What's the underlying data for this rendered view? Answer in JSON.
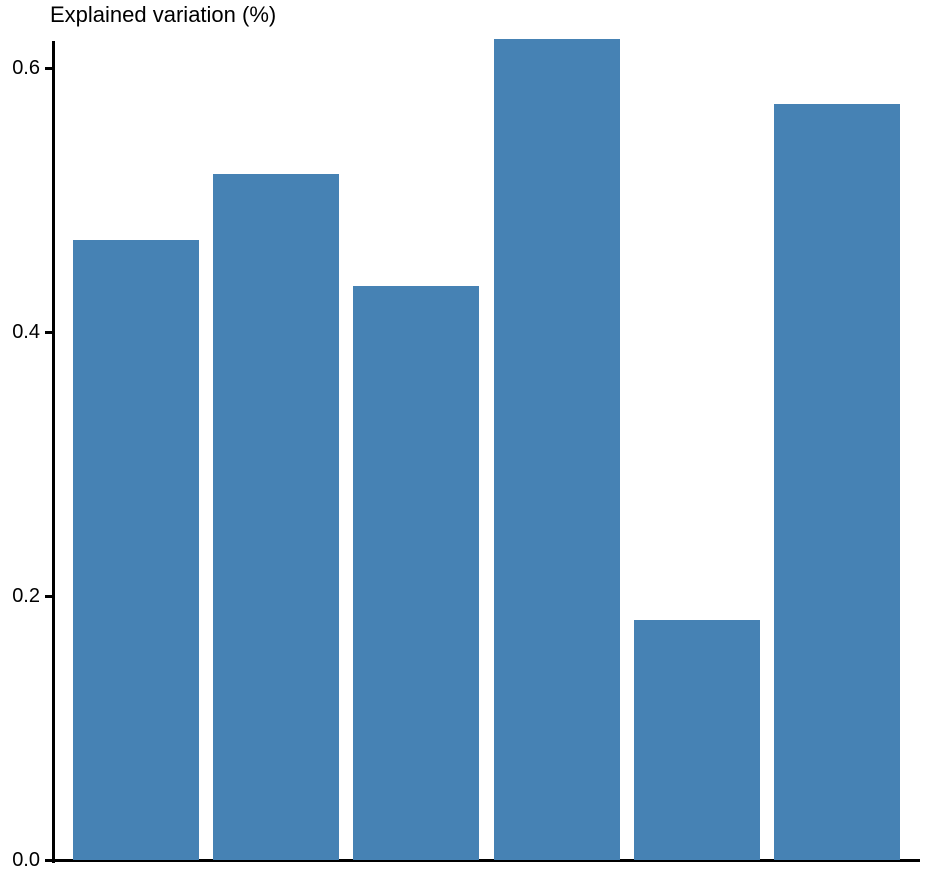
{
  "chart_data": {
    "type": "bar",
    "title": "Explained variation (%)",
    "xlabel": "",
    "ylabel": "",
    "values": [
      0.47,
      0.52,
      0.435,
      0.622,
      0.182,
      0.573
    ],
    "categories": [
      "",
      "",
      "",
      "",
      "",
      ""
    ],
    "yticks": [
      0.0,
      0.2,
      0.4,
      0.6
    ],
    "ytick_labels": [
      "0.0",
      "0.2",
      "0.4",
      "0.6"
    ],
    "ylim": [
      0,
      0.622
    ],
    "grid": false,
    "legend": false,
    "x_axis_labels_visible": false,
    "bar_color": "#4682B4",
    "axis_color": "#000000",
    "text_color": "#000000",
    "background_color": "#ffffff"
  }
}
